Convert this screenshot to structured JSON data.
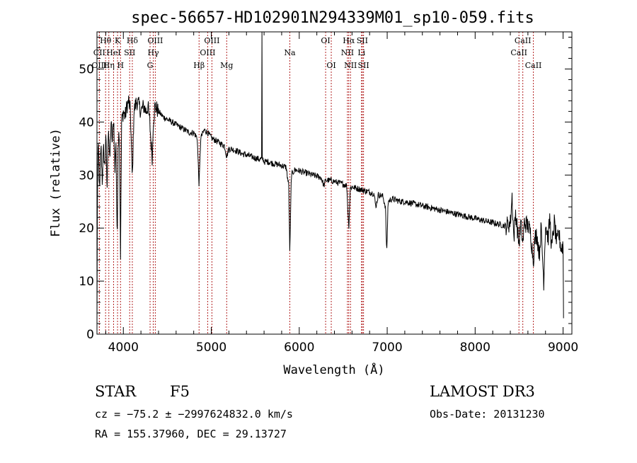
{
  "chart_data": {
    "type": "line",
    "title": "spec-56657-HD102901N294339M01_sp10-059.fits",
    "xlabel": "Wavelength (Å)",
    "ylabel": "Flux (relative)",
    "xlim": [
      3700,
      9100
    ],
    "ylim": [
      0,
      57
    ],
    "x_ticks": [
      4000,
      5000,
      6000,
      7000,
      8000,
      9000
    ],
    "y_ticks": [
      0,
      10,
      20,
      30,
      40,
      50
    ],
    "x_tick_labels": [
      "4000",
      "5000",
      "6000",
      "7000",
      "8000",
      "9000"
    ],
    "y_tick_labels": [
      "0",
      "10",
      "20",
      "30",
      "40",
      "50"
    ],
    "series": [
      {
        "name": "flux",
        "anchors": [
          [
            3700,
            0
          ],
          [
            3705,
            28
          ],
          [
            3715,
            36
          ],
          [
            3730,
            26
          ],
          [
            3745,
            36
          ],
          [
            3760,
            29
          ],
          [
            3775,
            35
          ],
          [
            3790,
            31
          ],
          [
            3800,
            38
          ],
          [
            3815,
            27
          ],
          [
            3830,
            40
          ],
          [
            3845,
            32
          ],
          [
            3860,
            40
          ],
          [
            3875,
            36
          ],
          [
            3890,
            41
          ],
          [
            3905,
            30
          ],
          [
            3915,
            38
          ],
          [
            3930,
            16
          ],
          [
            3940,
            36
          ],
          [
            3955,
            39
          ],
          [
            3968,
            15
          ],
          [
            3980,
            40
          ],
          [
            4000,
            42
          ],
          [
            4020,
            41
          ],
          [
            4040,
            43
          ],
          [
            4060,
            44
          ],
          [
            4080,
            42
          ],
          [
            4102,
            29
          ],
          [
            4120,
            42
          ],
          [
            4150,
            44
          ],
          [
            4180,
            43
          ],
          [
            4200,
            42
          ],
          [
            4230,
            43
          ],
          [
            4260,
            42
          ],
          [
            4280,
            43
          ],
          [
            4300,
            40
          ],
          [
            4315,
            36
          ],
          [
            4330,
            33
          ],
          [
            4340,
            40
          ],
          [
            4360,
            43
          ],
          [
            4400,
            42
          ],
          [
            4450,
            41
          ],
          [
            4500,
            40.5
          ],
          [
            4550,
            40
          ],
          [
            4600,
            39.5
          ],
          [
            4650,
            39
          ],
          [
            4700,
            38.5
          ],
          [
            4750,
            38
          ],
          [
            4800,
            38
          ],
          [
            4840,
            37
          ],
          [
            4861,
            28
          ],
          [
            4880,
            37
          ],
          [
            4920,
            38.5
          ],
          [
            4960,
            38
          ],
          [
            5000,
            37
          ],
          [
            5050,
            36.5
          ],
          [
            5100,
            36
          ],
          [
            5150,
            35.5
          ],
          [
            5175,
            33.5
          ],
          [
            5200,
            35
          ],
          [
            5250,
            34.8
          ],
          [
            5300,
            34.5
          ],
          [
            5350,
            34
          ],
          [
            5400,
            33.8
          ],
          [
            5450,
            33.5
          ],
          [
            5500,
            33.2
          ],
          [
            5550,
            33
          ],
          [
            5590,
            33
          ],
          [
            5600,
            32.5
          ],
          [
            5650,
            32.5
          ],
          [
            5700,
            32.2
          ],
          [
            5750,
            32
          ],
          [
            5800,
            31.8
          ],
          [
            5850,
            31.5
          ],
          [
            5880,
            28
          ],
          [
            5893,
            15
          ],
          [
            5910,
            30
          ],
          [
            5950,
            31
          ],
          [
            6000,
            30.8
          ],
          [
            6050,
            30.5
          ],
          [
            6100,
            30.3
          ],
          [
            6150,
            30
          ],
          [
            6200,
            29.8
          ],
          [
            6250,
            29.5
          ],
          [
            6280,
            28
          ],
          [
            6300,
            29
          ],
          [
            6350,
            29
          ],
          [
            6400,
            28.8
          ],
          [
            6450,
            28.5
          ],
          [
            6500,
            28.3
          ],
          [
            6540,
            28
          ],
          [
            6563,
            20
          ],
          [
            6580,
            27.5
          ],
          [
            6600,
            27.8
          ],
          [
            6650,
            27.5
          ],
          [
            6700,
            27.3
          ],
          [
            6750,
            27
          ],
          [
            6800,
            26.8
          ],
          [
            6850,
            26.5
          ],
          [
            6870,
            24
          ],
          [
            6900,
            26.3
          ],
          [
            6950,
            26
          ],
          [
            6980,
            24
          ],
          [
            6995,
            15
          ],
          [
            7010,
            25
          ],
          [
            7050,
            25.5
          ],
          [
            7100,
            25.3
          ],
          [
            7150,
            25
          ],
          [
            7200,
            25
          ],
          [
            7250,
            24.8
          ],
          [
            7300,
            24.6
          ],
          [
            7350,
            24.4
          ],
          [
            7400,
            24.2
          ],
          [
            7450,
            24
          ],
          [
            7500,
            23.8
          ],
          [
            7550,
            23.6
          ],
          [
            7600,
            23.4
          ],
          [
            7650,
            23.2
          ],
          [
            7700,
            23
          ],
          [
            7750,
            22.8
          ],
          [
            7800,
            22.6
          ],
          [
            7850,
            22.4
          ],
          [
            7900,
            22.2
          ],
          [
            7950,
            22
          ],
          [
            8000,
            21.8
          ],
          [
            8050,
            21.6
          ],
          [
            8100,
            21.4
          ],
          [
            8150,
            21.2
          ],
          [
            8200,
            21
          ],
          [
            8250,
            20.8
          ],
          [
            8300,
            20.6
          ],
          [
            8350,
            20.4
          ],
          [
            8400,
            21
          ],
          [
            8420,
            26
          ],
          [
            8440,
            18
          ],
          [
            8460,
            23
          ],
          [
            8498,
            17
          ],
          [
            8520,
            21
          ],
          [
            8542,
            17
          ],
          [
            8560,
            21
          ],
          [
            8600,
            20.5
          ],
          [
            8630,
            19
          ],
          [
            8662,
            14
          ],
          [
            8680,
            18
          ],
          [
            8700,
            19
          ],
          [
            8730,
            15
          ],
          [
            8750,
            20
          ],
          [
            8780,
            10
          ],
          [
            8800,
            21
          ],
          [
            8830,
            18
          ],
          [
            8850,
            22
          ],
          [
            8870,
            16
          ],
          [
            8900,
            21
          ],
          [
            8930,
            17
          ],
          [
            8950,
            19
          ],
          [
            8980,
            16
          ],
          [
            9000,
            17
          ],
          [
            9005,
            3
          ]
        ],
        "spikes": [
          [
            5577,
            57
          ]
        ]
      }
    ],
    "spectral_lines": [
      {
        "label": "Hθ",
        "wavelength": 3798,
        "row": 0
      },
      {
        "label": "K",
        "wavelength": 3934,
        "row": 0
      },
      {
        "label": "Hδ",
        "wavelength": 4102,
        "row": 0
      },
      {
        "label": "OIII",
        "wavelength": 4363,
        "row": 0
      },
      {
        "label": "OIII",
        "wavelength": 5007,
        "row": 0
      },
      {
        "label": "OI",
        "wavelength": 6300,
        "row": 0
      },
      {
        "label": "Hα",
        "wavelength": 6563,
        "row": 0
      },
      {
        "label": "SII",
        "wavelength": 6717,
        "row": 0
      },
      {
        "label": "CaII",
        "wavelength": 8542,
        "row": 0
      },
      {
        "label": "CII",
        "wavelength": 3727,
        "row": 1
      },
      {
        "label": "HeI",
        "wavelength": 3889,
        "row": 1
      },
      {
        "label": "SII",
        "wavelength": 4072,
        "row": 1
      },
      {
        "label": "Hγ",
        "wavelength": 4340,
        "row": 1
      },
      {
        "label": "OIII",
        "wavelength": 4959,
        "row": 1
      },
      {
        "label": "Na",
        "wavelength": 5893,
        "row": 1
      },
      {
        "label": "NII",
        "wavelength": 6548,
        "row": 1
      },
      {
        "label": "Li",
        "wavelength": 6708,
        "row": 1
      },
      {
        "label": "CaII",
        "wavelength": 8498,
        "row": 1
      },
      {
        "label": "OIII",
        "wavelength": 3727,
        "row": 2
      },
      {
        "label": "Hη",
        "wavelength": 3835,
        "row": 2
      },
      {
        "label": "H",
        "wavelength": 3968,
        "row": 2
      },
      {
        "label": "G",
        "wavelength": 4304,
        "row": 2
      },
      {
        "label": "Hβ",
        "wavelength": 4861,
        "row": 2
      },
      {
        "label": "Mg",
        "wavelength": 5175,
        "row": 2
      },
      {
        "label": "OI",
        "wavelength": 6364,
        "row": 2
      },
      {
        "label": "NII",
        "wavelength": 6583,
        "row": 2
      },
      {
        "label": "SII",
        "wavelength": 6731,
        "row": 2
      },
      {
        "label": "CaII",
        "wavelength": 8662,
        "row": 2
      }
    ],
    "line_color": "#b22222",
    "spectrum_color": "#000000"
  },
  "info": {
    "class_label": "STAR",
    "subclass": "F5",
    "survey": "LAMOST DR3",
    "cz": "cz = −75.2 ± −2997624832.0 km/s",
    "obs_date": "Obs-Date: 20131230",
    "radec": "RA = 155.37960, DEC =  29.13727"
  }
}
